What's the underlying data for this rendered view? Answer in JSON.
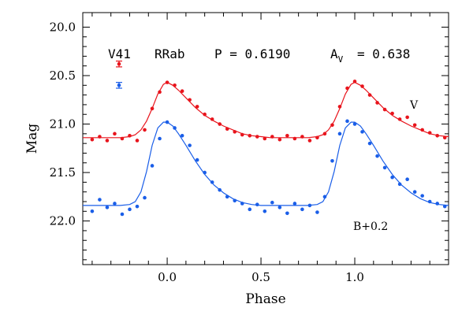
{
  "chart_data": {
    "type": "scatter",
    "title_parts": {
      "star": "V41",
      "class": "RRab",
      "period": "P = 0.6190",
      "amp_label_main": "A",
      "amp_label_sub": "V",
      "amp_value": "= 0.638"
    },
    "xlabel": "Phase",
    "ylabel": "Mag",
    "xlim": [
      -0.45,
      1.5
    ],
    "ylim": [
      22.45,
      19.85
    ],
    "x_ticks": [
      0.0,
      0.5,
      1.0
    ],
    "x_tick_labels": [
      "0.0",
      "0.5",
      "1.0"
    ],
    "y_ticks": [
      20.0,
      20.5,
      21.0,
      21.5,
      22.0
    ],
    "y_tick_labels": [
      "20.0",
      "20.5",
      "21.0",
      "21.5",
      "22.0"
    ],
    "series": [
      {
        "name": "V",
        "color": "#e8141c",
        "template_curve": {
          "phase": [
            0.0,
            0.03,
            0.06,
            0.1,
            0.15,
            0.2,
            0.25,
            0.3,
            0.35,
            0.4,
            0.45,
            0.5,
            0.55,
            0.6,
            0.65,
            0.7,
            0.75,
            0.8,
            0.83,
            0.86,
            0.89,
            0.92,
            0.95,
            0.98,
            1.0
          ],
          "mag": [
            20.57,
            20.6,
            20.65,
            20.73,
            20.83,
            20.91,
            20.97,
            21.02,
            21.06,
            21.1,
            21.12,
            21.13,
            21.14,
            21.14,
            21.14,
            21.14,
            21.14,
            21.13,
            21.11,
            21.06,
            20.97,
            20.84,
            20.69,
            20.59,
            20.57
          ]
        },
        "observations": {
          "phase": [
            -0.4,
            -0.36,
            -0.32,
            -0.28,
            -0.24,
            -0.2,
            -0.16,
            -0.12,
            -0.08,
            -0.04,
            0.0,
            0.04,
            0.08,
            0.12,
            0.16,
            0.2,
            0.24,
            0.28,
            0.32,
            0.36,
            0.4,
            0.44,
            0.48,
            0.52,
            0.56,
            0.6,
            0.64,
            0.68,
            0.72,
            0.76,
            0.8,
            0.84,
            0.88,
            0.92,
            0.96,
            1.0,
            1.04,
            1.08,
            1.12,
            1.16,
            1.2,
            1.24,
            1.28,
            1.32,
            1.36,
            1.4,
            1.44,
            1.48
          ],
          "mag": [
            21.16,
            21.13,
            21.17,
            21.1,
            21.15,
            21.12,
            21.17,
            21.06,
            20.84,
            20.67,
            20.57,
            20.6,
            20.66,
            20.75,
            20.82,
            20.9,
            20.95,
            21.0,
            21.05,
            21.08,
            21.11,
            21.12,
            21.13,
            21.15,
            21.13,
            21.16,
            21.12,
            21.15,
            21.13,
            21.17,
            21.14,
            21.1,
            21.01,
            20.82,
            20.63,
            20.56,
            20.61,
            20.7,
            20.78,
            20.85,
            20.89,
            20.95,
            20.93,
            21.01,
            21.06,
            21.09,
            21.12,
            21.14
          ]
        },
        "label": "V",
        "errorbar_mag_halfwidth": 0.03
      },
      {
        "name": "B+0.2",
        "color": "#1a5ee8",
        "template_curve": {
          "phase": [
            0.0,
            0.03,
            0.06,
            0.1,
            0.15,
            0.2,
            0.25,
            0.3,
            0.35,
            0.4,
            0.45,
            0.5,
            0.55,
            0.6,
            0.65,
            0.7,
            0.75,
            0.8,
            0.83,
            0.86,
            0.89,
            0.92,
            0.95,
            0.98,
            1.0
          ],
          "mag": [
            20.98,
            21.02,
            21.1,
            21.22,
            21.38,
            21.52,
            21.63,
            21.71,
            21.77,
            21.81,
            21.83,
            21.84,
            21.84,
            21.84,
            21.84,
            21.84,
            21.84,
            21.83,
            21.8,
            21.7,
            21.49,
            21.22,
            21.04,
            20.98,
            20.98
          ]
        },
        "observations": {
          "phase": [
            -0.4,
            -0.36,
            -0.32,
            -0.28,
            -0.24,
            -0.2,
            -0.16,
            -0.12,
            -0.08,
            -0.04,
            0.0,
            0.04,
            0.08,
            0.12,
            0.16,
            0.2,
            0.24,
            0.28,
            0.32,
            0.36,
            0.4,
            0.44,
            0.48,
            0.52,
            0.56,
            0.6,
            0.64,
            0.68,
            0.72,
            0.76,
            0.8,
            0.84,
            0.88,
            0.92,
            0.96,
            1.0,
            1.04,
            1.08,
            1.12,
            1.16,
            1.2,
            1.24,
            1.28,
            1.32,
            1.36,
            1.4,
            1.44,
            1.48
          ],
          "mag": [
            21.9,
            21.78,
            21.86,
            21.82,
            21.93,
            21.88,
            21.85,
            21.76,
            21.43,
            21.15,
            20.98,
            21.04,
            21.12,
            21.22,
            21.37,
            21.5,
            21.6,
            21.68,
            21.75,
            21.79,
            21.82,
            21.88,
            21.83,
            21.9,
            21.81,
            21.86,
            21.92,
            21.82,
            21.88,
            21.84,
            21.91,
            21.75,
            21.38,
            21.1,
            20.97,
            21.0,
            21.08,
            21.2,
            21.33,
            21.45,
            21.55,
            21.62,
            21.57,
            21.7,
            21.74,
            21.8,
            21.82,
            21.85
          ]
        },
        "label": "B+0.2",
        "errorbar_mag_halfwidth": 0.03
      }
    ],
    "grid": false,
    "legend": "top-left (error-bar markers)"
  }
}
